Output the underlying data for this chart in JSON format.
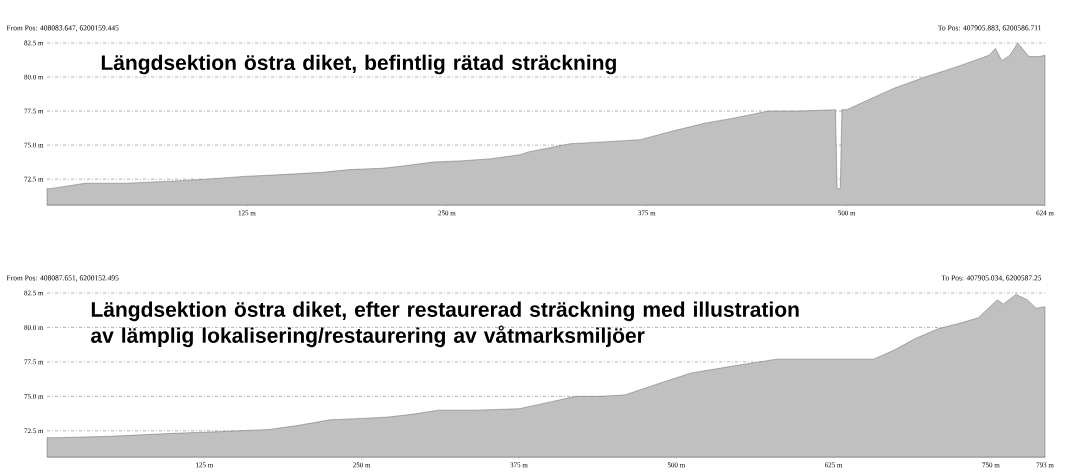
{
  "chart_data": [
    {
      "type": "area",
      "title": "Längdsektion östra diket, befintlig rätad sträckning",
      "annotations": [
        "From Pos: 408083.647, 6200159.445",
        "To Pos: 407905.883, 6200586.711"
      ],
      "x": [
        0,
        2,
        24,
        50,
        77,
        100,
        123,
        150,
        172,
        189,
        210,
        225,
        241,
        260,
        278,
        296,
        301,
        327,
        350,
        371,
        390,
        411,
        430,
        451,
        470,
        493,
        494,
        496,
        497,
        500,
        515,
        530,
        549,
        570,
        589,
        593,
        597,
        602,
        607,
        614,
        620,
        624
      ],
      "series": [
        {
          "color": "#c0c0c0",
          "values": [
            71.8,
            71.8,
            72.2,
            72.2,
            72.35,
            72.5,
            72.7,
            72.85,
            73.0,
            73.2,
            73.3,
            73.5,
            73.75,
            73.85,
            74.0,
            74.3,
            74.5,
            75.1,
            75.25,
            75.4,
            76.0,
            76.6,
            77.0,
            77.5,
            77.5,
            77.6,
            71.8,
            71.8,
            77.6,
            77.6,
            78.4,
            79.2,
            80.0,
            80.8,
            81.6,
            82.1,
            81.2,
            81.6,
            82.5,
            81.5,
            81.5,
            81.6
          ]
        }
      ],
      "xlim": [
        0,
        624
      ],
      "ylim": [
        70.6,
        82.5
      ],
      "xticks": [
        {
          "value": 125,
          "label": "125 m"
        },
        {
          "value": 250,
          "label": "250 m"
        },
        {
          "value": 375,
          "label": "375 m"
        },
        {
          "value": 500,
          "label": "500 m"
        },
        {
          "value": 624,
          "label": "624 m"
        }
      ],
      "yticks": [
        {
          "value": 72.5,
          "label": "72.5 m"
        },
        {
          "value": 75,
          "label": "75.0 m"
        },
        {
          "value": 77.5,
          "label": "77.5 m"
        },
        {
          "value": 80,
          "label": "80.0 m"
        },
        {
          "value": 82.5,
          "label": "82.5 m"
        }
      ],
      "grid": "y"
    },
    {
      "type": "area",
      "title": "Längdsektion östra diket, efter restaurerad sträckning med illustration\nav lämplig lokalisering/restaurering av våtmarksmiljöer",
      "annotations": [
        "From Pos: 408087.651, 6200152.495",
        "To Pos: 407905.034, 6200587.25"
      ],
      "x": [
        0,
        6,
        50,
        96,
        140,
        177,
        200,
        225,
        250,
        271,
        290,
        311,
        340,
        375,
        400,
        420,
        440,
        459,
        485,
        512,
        545,
        580,
        620,
        657,
        674,
        690,
        708,
        725,
        740,
        755,
        760,
        770,
        779,
        786,
        793
      ],
      "series": [
        {
          "color": "#c0c0c0",
          "values": [
            72.0,
            72.0,
            72.1,
            72.3,
            72.45,
            72.6,
            72.9,
            73.3,
            73.4,
            73.5,
            73.7,
            74.0,
            74.0,
            74.1,
            74.6,
            75.0,
            75.0,
            75.1,
            75.9,
            76.7,
            77.2,
            77.7,
            77.7,
            77.7,
            78.4,
            79.2,
            79.9,
            80.3,
            80.7,
            82.0,
            81.7,
            82.4,
            82.0,
            81.4,
            81.5
          ]
        }
      ],
      "xlim": [
        0,
        793
      ],
      "ylim": [
        70.6,
        82.5
      ],
      "xticks": [
        {
          "value": 125,
          "label": "125 m"
        },
        {
          "value": 250,
          "label": "250 m"
        },
        {
          "value": 375,
          "label": "375 m"
        },
        {
          "value": 500,
          "label": "500 m"
        },
        {
          "value": 625,
          "label": "625 m"
        },
        {
          "value": 750,
          "label": "750 m"
        },
        {
          "value": 793,
          "label": "793 m"
        }
      ],
      "yticks": [
        {
          "value": 72.5,
          "label": "72.5 m"
        },
        {
          "value": 75,
          "label": "75.0 m"
        },
        {
          "value": 77.5,
          "label": "77.5 m"
        },
        {
          "value": 80,
          "label": "80.0 m"
        },
        {
          "value": 82.5,
          "label": "82.5 m"
        }
      ],
      "grid": "y"
    }
  ]
}
